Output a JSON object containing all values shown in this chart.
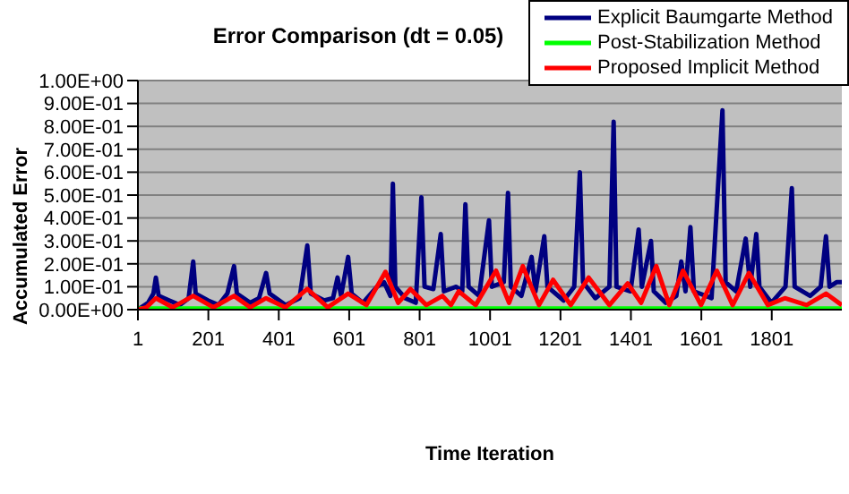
{
  "chart_data": {
    "type": "line",
    "title": "Error Comparison (dt = 0.05)",
    "xlabel": "Time Iteration",
    "ylabel": "Accumulated Error",
    "xlim": [
      1,
      2000
    ],
    "xticks": [
      1,
      201,
      401,
      601,
      801,
      1001,
      1201,
      1401,
      1601,
      1801
    ],
    "ylim": [
      0,
      1
    ],
    "yticks": [
      {
        "value": 0,
        "label": "0.00E+00"
      },
      {
        "value": 0.1,
        "label": "1.00E-01"
      },
      {
        "value": 0.2,
        "label": "2.00E-01"
      },
      {
        "value": 0.3,
        "label": "3.00E-01"
      },
      {
        "value": 0.4,
        "label": "4.00E-01"
      },
      {
        "value": 0.5,
        "label": "5.00E-01"
      },
      {
        "value": 0.6,
        "label": "6.00E-01"
      },
      {
        "value": 0.7,
        "label": "7.00E-01"
      },
      {
        "value": 0.8,
        "label": "8.00E-01"
      },
      {
        "value": 0.9,
        "label": "9.00E-01"
      },
      {
        "value": 1,
        "label": "1.00E+00"
      }
    ],
    "grid": "y",
    "legend": "top right",
    "marker": "none",
    "line_style": "solid",
    "series": [
      {
        "name": "Explicit Baumgarte Method",
        "color": "#000080",
        "x": [
          1,
          30,
          45,
          52,
          60,
          90,
          120,
          145,
          158,
          165,
          200,
          230,
          255,
          274,
          282,
          320,
          345,
          365,
          375,
          420,
          460,
          482,
          492,
          530,
          555,
          568,
          578,
          598,
          608,
          640,
          680,
          700,
          718,
          725,
          732,
          760,
          790,
          806,
          815,
          840,
          861,
          870,
          905,
          922,
          931,
          940,
          970,
          998,
          1006,
          1040,
          1052,
          1060,
          1090,
          1119,
          1130,
          1155,
          1164,
          1210,
          1240,
          1256,
          1265,
          1300,
          1340,
          1352,
          1360,
          1400,
          1423,
          1432,
          1458,
          1466,
          1500,
          1530,
          1544,
          1556,
          1570,
          1580,
          1630,
          1661,
          1670,
          1700,
          1727,
          1740,
          1757,
          1766,
          1800,
          1840,
          1858,
          1866,
          1910,
          1940,
          1955,
          1965,
          1985,
          2000
        ],
        "values": [
          0,
          0.03,
          0.07,
          0.14,
          0.06,
          0.04,
          0.02,
          0.05,
          0.21,
          0.07,
          0.04,
          0.02,
          0.07,
          0.19,
          0.07,
          0.03,
          0.05,
          0.16,
          0.07,
          0.02,
          0.05,
          0.28,
          0.07,
          0.04,
          0.05,
          0.14,
          0.06,
          0.23,
          0.07,
          0.03,
          0.1,
          0.12,
          0.06,
          0.55,
          0.1,
          0.05,
          0.03,
          0.49,
          0.1,
          0.09,
          0.33,
          0.08,
          0.1,
          0.08,
          0.46,
          0.1,
          0.06,
          0.39,
          0.1,
          0.12,
          0.51,
          0.1,
          0.06,
          0.23,
          0.08,
          0.32,
          0.1,
          0.04,
          0.1,
          0.6,
          0.12,
          0.05,
          0.1,
          0.82,
          0.1,
          0.08,
          0.35,
          0.1,
          0.3,
          0.08,
          0.03,
          0.06,
          0.21,
          0.08,
          0.36,
          0.08,
          0.05,
          0.87,
          0.12,
          0.08,
          0.31,
          0.1,
          0.33,
          0.1,
          0.03,
          0.1,
          0.53,
          0.1,
          0.06,
          0.1,
          0.32,
          0.1,
          0.12,
          0.12
        ]
      },
      {
        "name": "Post-Stabilization Method",
        "color": "#00ff00",
        "x": [
          1,
          500,
          1000,
          1500,
          2000
        ],
        "values": [
          0.005,
          0.005,
          0.005,
          0.005,
          0.005
        ]
      },
      {
        "name": "Proposed Implicit Method",
        "color": "#ff0000",
        "x": [
          1,
          25,
          52,
          100,
          158,
          215,
          274,
          320,
          365,
          420,
          482,
          540,
          598,
          650,
          704,
          740,
          775,
          820,
          866,
          890,
          912,
          960,
          1018,
          1055,
          1094,
          1140,
          1180,
          1230,
          1281,
          1340,
          1392,
          1430,
          1473,
          1510,
          1549,
          1600,
          1645,
          1690,
          1736,
          1790,
          1838,
          1900,
          1955,
          2000
        ],
        "values": [
          0,
          0.01,
          0.05,
          0.01,
          0.06,
          0.01,
          0.06,
          0.01,
          0.05,
          0.01,
          0.09,
          0.01,
          0.07,
          0.02,
          0.165,
          0.03,
          0.09,
          0.02,
          0.06,
          0.02,
          0.08,
          0.02,
          0.17,
          0.03,
          0.19,
          0.02,
          0.13,
          0.02,
          0.14,
          0.02,
          0.115,
          0.03,
          0.19,
          0.02,
          0.17,
          0.02,
          0.17,
          0.02,
          0.16,
          0.02,
          0.05,
          0.02,
          0.07,
          0.02
        ]
      }
    ]
  }
}
